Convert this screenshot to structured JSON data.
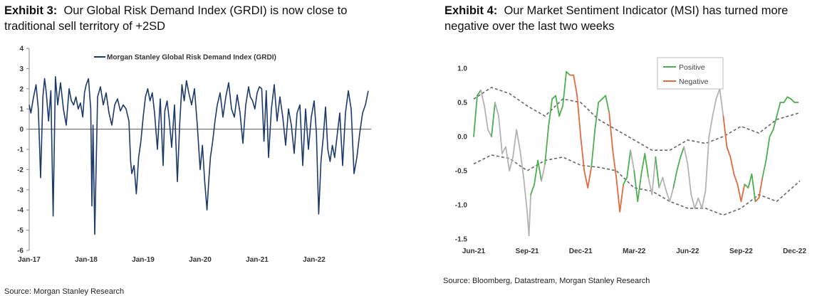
{
  "exhibit3": {
    "label": "Exhibit 3:",
    "title": "Our Global Risk Demand Index (GRDI) is now close to traditional sell territory of +2SD",
    "source": "Source: Morgan Stanley Research"
  },
  "exhibit4": {
    "label": "Exhibit 4:",
    "title": "Our Market Sentiment Indicator (MSI) has turned more negative over the last two weeks",
    "source": "Source: Bloomberg, Datastream, Morgan Stanley Research"
  },
  "colors": {
    "grdi": "#1c3a6b",
    "zero": "#555555",
    "positive": "#4caf50",
    "negative": "#e06a3f",
    "neutral": "#b3b3b3",
    "band": "#666666"
  },
  "chart_data": [
    {
      "type": "line",
      "title": "Morgan Stanley Global Risk Demand Index (GRDI)",
      "xlabel": "",
      "ylabel": "",
      "ylim": [
        -6,
        4
      ],
      "yticks": [
        4,
        3,
        2,
        1,
        0,
        -1,
        -2,
        -3,
        -4,
        -5,
        -6
      ],
      "xlim": [
        2017.0,
        2023.0
      ],
      "xticks": [
        {
          "label": "Jan-17",
          "x": 2017.0
        },
        {
          "label": "Jan-18",
          "x": 2018.0
        },
        {
          "label": "Jan-19",
          "x": 2019.0
        },
        {
          "label": "Jan-20",
          "x": 2020.0
        },
        {
          "label": "Jan-21",
          "x": 2021.0
        },
        {
          "label": "Jan-22",
          "x": 2022.0
        }
      ],
      "legend": [
        "Morgan Stanley Global Risk Demand Index (GRDI)"
      ],
      "legend_position": "top",
      "series": [
        {
          "name": "Morgan Stanley Global Risk Demand Index (GRDI)",
          "x": [
            2017.0,
            2017.03,
            2017.07,
            2017.12,
            2017.16,
            2017.2,
            2017.24,
            2017.27,
            2017.3,
            2017.34,
            2017.38,
            2017.42,
            2017.46,
            2017.5,
            2017.55,
            2017.6,
            2017.65,
            2017.7,
            2017.74,
            2017.78,
            2017.82,
            2017.86,
            2017.9,
            2017.94,
            2017.97,
            2018.0,
            2018.04,
            2018.08,
            2018.1,
            2018.12,
            2018.15,
            2018.2,
            2018.25,
            2018.3,
            2018.35,
            2018.4,
            2018.45,
            2018.5,
            2018.55,
            2018.6,
            2018.65,
            2018.7,
            2018.75,
            2018.78,
            2018.8,
            2018.84,
            2018.88,
            2018.92,
            2018.96,
            2019.0,
            2019.04,
            2019.08,
            2019.12,
            2019.16,
            2019.2,
            2019.25,
            2019.3,
            2019.35,
            2019.38,
            2019.42,
            2019.46,
            2019.5,
            2019.55,
            2019.6,
            2019.64,
            2019.68,
            2019.72,
            2019.76,
            2019.8,
            2019.85,
            2019.9,
            2019.95,
            2020.0,
            2020.04,
            2020.08,
            2020.12,
            2020.15,
            2020.18,
            2020.22,
            2020.26,
            2020.3,
            2020.35,
            2020.4,
            2020.45,
            2020.5,
            2020.55,
            2020.6,
            2020.65,
            2020.7,
            2020.75,
            2020.8,
            2020.85,
            2020.88,
            2020.92,
            2020.96,
            2021.0,
            2021.04,
            2021.08,
            2021.12,
            2021.16,
            2021.2,
            2021.25,
            2021.3,
            2021.35,
            2021.4,
            2021.45,
            2021.5,
            2021.55,
            2021.6,
            2021.65,
            2021.7,
            2021.75,
            2021.8,
            2021.85,
            2021.9,
            2021.95,
            2022.0,
            2022.04,
            2022.08,
            2022.12,
            2022.16,
            2022.2,
            2022.24,
            2022.28,
            2022.32,
            2022.36,
            2022.4,
            2022.45,
            2022.5,
            2022.55,
            2022.6,
            2022.65,
            2022.7,
            2022.75,
            2022.8,
            2022.85,
            2022.9,
            2022.95
          ],
          "values": [
            1.2,
            0.8,
            1.5,
            2.2,
            1.0,
            -2.4,
            1.6,
            2.5,
            1.8,
            0.4,
            1.9,
            -4.3,
            2.6,
            1.2,
            2.3,
            1.0,
            0.2,
            2.0,
            1.4,
            1.2,
            1.6,
            1.0,
            1.3,
            0.6,
            1.8,
            2.2,
            2.5,
            1.0,
            -3.8,
            0.2,
            -5.2,
            1.6,
            2.1,
            1.2,
            1.8,
            0.8,
            0.2,
            1.2,
            1.5,
            0.9,
            1.2,
            1.0,
            0.4,
            -1.6,
            -2.2,
            -1.8,
            -3.2,
            -1.4,
            -0.6,
            0.6,
            1.6,
            2.0,
            1.4,
            1.8,
            0.8,
            -1.0,
            1.5,
            -1.8,
            0.9,
            1.4,
            0.4,
            -0.9,
            1.2,
            -2.6,
            0.2,
            2.2,
            1.4,
            2.4,
            1.8,
            1.2,
            2.0,
            0.2,
            -2.0,
            -0.8,
            -2.6,
            -4.0,
            -2.6,
            -1.4,
            -0.6,
            0.4,
            1.2,
            1.8,
            0.6,
            1.6,
            2.3,
            1.0,
            0.6,
            1.7,
            0.8,
            -0.7,
            1.2,
            2.1,
            1.6,
            1.4,
            1.0,
            1.8,
            2.1,
            2.0,
            -0.6,
            1.9,
            -1.4,
            1.0,
            2.2,
            0.4,
            1.6,
            0.6,
            -0.8,
            1.0,
            0.2,
            -1.2,
            0.8,
            1.2,
            -1.8,
            1.0,
            -1.0,
            0.6,
            1.4,
            -0.2,
            -4.2,
            -1.6,
            -0.4,
            1.1,
            -1.0,
            -1.6,
            -0.8,
            -1.4,
            -0.4,
            0.8,
            -1.8,
            0.8,
            1.9,
            1.0,
            -2.2,
            -1.4,
            -0.2,
            0.8,
            1.2,
            1.9
          ]
        }
      ]
    },
    {
      "type": "line",
      "title": "Market Sentiment Indicator (MSI)",
      "xlabel": "",
      "ylabel": "",
      "ylim": [
        -1.5,
        1.0
      ],
      "yticks": [
        1.0,
        0.5,
        0.0,
        -0.5,
        -1.0,
        -1.5
      ],
      "ytick_labels": [
        "1.0",
        "0.5",
        "0.0",
        "-0.5",
        "-1.0",
        "-1.5"
      ],
      "xlim": [
        0,
        18.3
      ],
      "xticks": [
        {
          "label": "Jun-21",
          "x": 0
        },
        {
          "label": "Sep-21",
          "x": 3
        },
        {
          "label": "Dec-21",
          "x": 6
        },
        {
          "label": "Mar-22",
          "x": 9
        },
        {
          "label": "Jun-22",
          "x": 12
        },
        {
          "label": "Sep-22",
          "x": 15
        },
        {
          "label": "Dec-22",
          "x": 18
        }
      ],
      "legend": [
        "Positive",
        "Negative"
      ],
      "legend_position": "top-center",
      "msi": {
        "x": [
          0.0,
          0.2,
          0.4,
          0.6,
          0.8,
          1.0,
          1.2,
          1.4,
          1.6,
          1.8,
          2.0,
          2.2,
          2.4,
          2.6,
          2.8,
          3.0,
          3.1,
          3.2,
          3.4,
          3.6,
          3.8,
          4.0,
          4.2,
          4.4,
          4.6,
          4.8,
          5.0,
          5.2,
          5.4,
          5.6,
          5.8,
          6.0,
          6.2,
          6.4,
          6.6,
          6.8,
          7.0,
          7.2,
          7.4,
          7.6,
          7.8,
          8.0,
          8.2,
          8.4,
          8.6,
          8.8,
          9.0,
          9.2,
          9.4,
          9.6,
          9.8,
          10.0,
          10.2,
          10.4,
          10.6,
          10.8,
          11.0,
          11.2,
          11.4,
          11.6,
          11.8,
          12.0,
          12.2,
          12.4,
          12.6,
          12.8,
          13.0,
          13.2,
          13.4,
          13.6,
          13.8,
          14.0,
          14.2,
          14.4,
          14.6,
          14.8,
          15.0,
          15.2,
          15.4,
          15.6,
          15.8,
          16.0,
          16.2,
          16.4,
          16.6,
          16.8,
          17.0,
          17.2,
          17.4,
          17.6,
          17.8,
          18.0,
          18.2
        ],
        "y": [
          0.0,
          0.6,
          0.68,
          0.45,
          0.1,
          0.0,
          0.5,
          0.3,
          -0.25,
          -0.15,
          -0.5,
          -0.3,
          0.1,
          -0.2,
          -0.6,
          -1.1,
          -1.45,
          -0.85,
          -0.7,
          -0.35,
          -0.65,
          -0.4,
          0.15,
          0.55,
          0.6,
          0.3,
          0.45,
          0.95,
          0.9,
          0.9,
          0.6,
          0.0,
          -0.5,
          -0.75,
          -0.45,
          0.1,
          0.5,
          0.55,
          0.6,
          0.35,
          -0.2,
          -0.6,
          -1.1,
          -0.7,
          -0.6,
          -0.2,
          -0.5,
          -0.95,
          -0.55,
          -0.25,
          -0.6,
          -0.85,
          -0.3,
          -0.75,
          -0.6,
          -0.8,
          -0.95,
          -0.75,
          -0.5,
          -0.3,
          -0.15,
          -0.4,
          -0.85,
          -1.05,
          -0.9,
          -1.05,
          -0.8,
          0.0,
          0.3,
          0.55,
          0.7,
          0.3,
          -0.15,
          -0.3,
          -0.55,
          -0.7,
          -0.95,
          -0.7,
          -0.75,
          -0.55,
          -0.95,
          -0.9,
          -0.6,
          -0.35,
          0.0,
          0.1,
          0.3,
          0.5,
          0.5,
          0.58,
          0.55,
          0.5,
          0.5
        ],
        "state": [
          "p",
          "p",
          "n",
          "n",
          "n",
          "p",
          "n",
          "n",
          "n",
          "n",
          "n",
          "n",
          "n",
          "n",
          "n",
          "n",
          "n",
          "p",
          "p",
          "p",
          "n",
          "p",
          "p",
          "p",
          "p",
          "p",
          "p",
          "p",
          "N",
          "N",
          "N",
          "N",
          "N",
          "N",
          "p",
          "p",
          "p",
          "p",
          "p",
          "N",
          "N",
          "N",
          "N",
          "p",
          "p",
          "n",
          "p",
          "p",
          "p",
          "p",
          "n",
          "n",
          "p",
          "n",
          "n",
          "n",
          "n",
          "p",
          "p",
          "p",
          "n",
          "n",
          "n",
          "n",
          "n",
          "n",
          "n",
          "n",
          "n",
          "n",
          "n",
          "N",
          "N",
          "N",
          "N",
          "N",
          "N",
          "p",
          "p",
          "p",
          "N",
          "N",
          "p",
          "p",
          "p",
          "p",
          "p",
          "p",
          "p",
          "p",
          "p",
          "p",
          "p"
        ]
      },
      "upper_band": {
        "x": [
          0,
          1,
          2,
          3,
          4,
          5,
          6,
          7,
          8,
          9,
          10,
          11,
          12,
          13,
          14,
          15,
          16,
          17,
          18.3
        ],
        "y": [
          0.55,
          0.72,
          0.63,
          0.45,
          0.3,
          0.55,
          0.5,
          0.25,
          0.1,
          -0.05,
          -0.2,
          -0.2,
          -0.05,
          -0.1,
          0.0,
          0.15,
          0.05,
          0.25,
          0.35
        ]
      },
      "lower_band": {
        "x": [
          0,
          1,
          2,
          3,
          4,
          5,
          6,
          7,
          8,
          9,
          10,
          11,
          12,
          13,
          14,
          15,
          16,
          17,
          18.3
        ],
        "y": [
          -0.4,
          -0.27,
          -0.32,
          -0.5,
          -0.35,
          -0.3,
          -0.42,
          -0.45,
          -0.5,
          -0.75,
          -0.8,
          -0.95,
          -1.05,
          -1.05,
          -1.15,
          -1.05,
          -0.85,
          -0.95,
          -0.65
        ]
      }
    }
  ]
}
